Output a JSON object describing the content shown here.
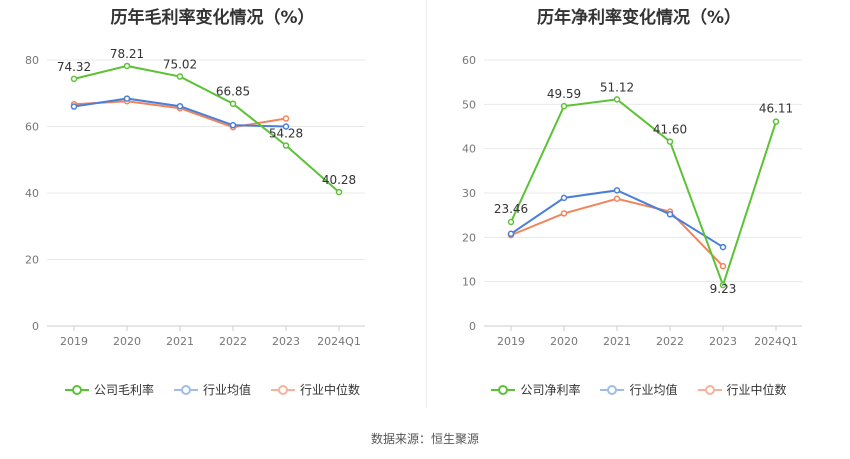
{
  "footer": "数据来源：恒生聚源",
  "chart_data": [
    {
      "type": "line",
      "title": "历年毛利率变化情况（%）",
      "categories": [
        "2019",
        "2020",
        "2021",
        "2022",
        "2023",
        "2024Q1"
      ],
      "ylim": [
        0,
        80
      ],
      "yticks": [
        0,
        20,
        40,
        60,
        80
      ],
      "grid": true,
      "legend_position": "bottom",
      "series": [
        {
          "name": "公司毛利率",
          "color": "#5bc236",
          "values": [
            74.32,
            78.21,
            75.02,
            66.85,
            54.28,
            40.28
          ],
          "labels": [
            "74.32",
            "78.21",
            "75.02",
            "66.85",
            "54.28",
            "40.28"
          ]
        },
        {
          "name": "行业均值",
          "color": "#4a7fd9",
          "values": [
            66.0,
            68.4,
            66.1,
            60.4,
            60.0,
            null
          ]
        },
        {
          "name": "行业中位数",
          "color": "#f2845c",
          "values": [
            66.7,
            67.6,
            65.5,
            59.8,
            62.4,
            null
          ]
        }
      ]
    },
    {
      "type": "line",
      "title": "历年净利率变化情况（%）",
      "categories": [
        "2019",
        "2020",
        "2021",
        "2022",
        "2023",
        "2024Q1"
      ],
      "ylim": [
        0,
        60
      ],
      "yticks": [
        0,
        10,
        20,
        30,
        40,
        50,
        60
      ],
      "grid": true,
      "legend_position": "bottom",
      "series": [
        {
          "name": "公司净利率",
          "color": "#5bc236",
          "values": [
            23.46,
            49.59,
            51.12,
            41.6,
            9.23,
            46.11
          ],
          "labels": [
            "23.46",
            "49.59",
            "51.12",
            "41.60",
            "9.23",
            "46.11"
          ]
        },
        {
          "name": "行业均值",
          "color": "#4a7fd9",
          "values": [
            20.8,
            28.9,
            30.6,
            25.2,
            17.8,
            null
          ]
        },
        {
          "name": "行业中位数",
          "color": "#f2845c",
          "values": [
            20.5,
            25.4,
            28.7,
            25.8,
            13.5,
            null
          ]
        }
      ]
    }
  ]
}
